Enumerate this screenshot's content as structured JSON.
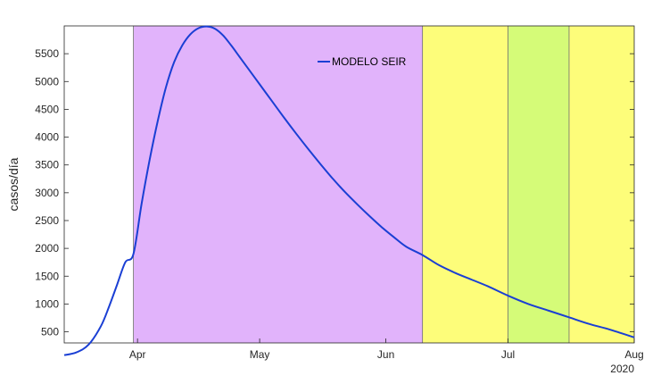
{
  "chart_data": {
    "type": "line",
    "title": "",
    "xlabel": "",
    "ylabel": "casos/día",
    "x_ticks": [
      "Apr",
      "May",
      "Jun",
      "Jul",
      "Aug"
    ],
    "x_year_label": "2020",
    "x_range": [
      "2020-03-14",
      "2020-08-01"
    ],
    "ylim": [
      300,
      6000
    ],
    "y_ticks": [
      500,
      1000,
      1500,
      2000,
      2500,
      3000,
      3500,
      4000,
      4500,
      5000,
      5500
    ],
    "grid": false,
    "legend_position": "top-center",
    "background_bands": [
      {
        "start": "2020-03-31",
        "end": "2020-06-10",
        "color": "#e1b3fb"
      },
      {
        "start": "2020-06-10",
        "end": "2020-07-01",
        "color": "#fdfd7a"
      },
      {
        "start": "2020-07-01",
        "end": "2020-07-16",
        "color": "#d5fb78"
      },
      {
        "start": "2020-07-16",
        "end": "2020-08-01",
        "color": "#fdfd7a"
      }
    ],
    "series": [
      {
        "name": "MODELO SEIR",
        "color": "#1a3fd4",
        "x": [
          "2020-03-14",
          "2020-03-17",
          "2020-03-20",
          "2020-03-23",
          "2020-03-25",
          "2020-03-27",
          "2020-03-29",
          "2020-03-31",
          "2020-04-02",
          "2020-04-04",
          "2020-04-06",
          "2020-04-08",
          "2020-04-10",
          "2020-04-12",
          "2020-04-14",
          "2020-04-16",
          "2020-04-18",
          "2020-04-20",
          "2020-04-22",
          "2020-04-24",
          "2020-04-26",
          "2020-04-28",
          "2020-05-01",
          "2020-05-04",
          "2020-05-07",
          "2020-05-10",
          "2020-05-13",
          "2020-05-16",
          "2020-05-19",
          "2020-05-22",
          "2020-05-25",
          "2020-05-28",
          "2020-05-31",
          "2020-06-03",
          "2020-06-06",
          "2020-06-10",
          "2020-06-14",
          "2020-06-18",
          "2020-06-22",
          "2020-06-26",
          "2020-07-01",
          "2020-07-06",
          "2020-07-11",
          "2020-07-16",
          "2020-07-21",
          "2020-07-26",
          "2020-08-01"
        ],
        "y": [
          80,
          130,
          270,
          600,
          950,
          1350,
          1750,
          1900,
          2800,
          3600,
          4300,
          4900,
          5350,
          5650,
          5850,
          5960,
          5990,
          5950,
          5830,
          5650,
          5450,
          5250,
          4950,
          4650,
          4350,
          4060,
          3780,
          3510,
          3250,
          3010,
          2790,
          2580,
          2380,
          2200,
          2030,
          1880,
          1700,
          1560,
          1440,
          1320,
          1150,
          1000,
          880,
          760,
          640,
          540,
          400
        ]
      }
    ]
  }
}
